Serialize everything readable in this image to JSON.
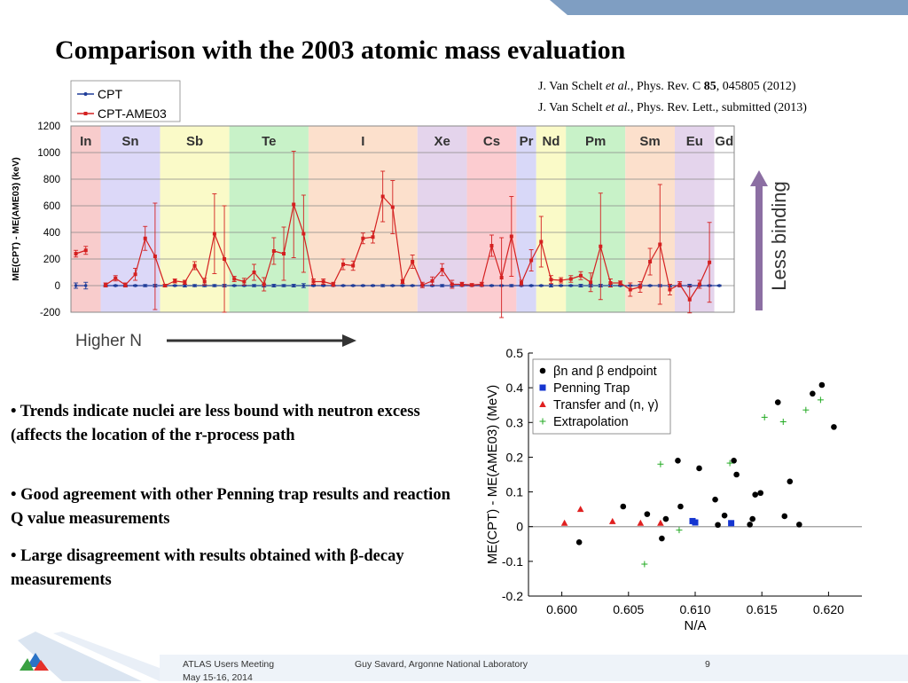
{
  "slide": {
    "title": "Comparison with the 2003 atomic mass evaluation",
    "ref1": {
      "authors": "J. Van Schelt ",
      "etal": "et al.",
      "journal": ", Phys. Rev. C ",
      "volume": "85",
      "rest": ", 045805 (2012)"
    },
    "ref2": {
      "authors": "J. Van Schelt ",
      "etal": "et al.",
      "rest": ", Phys. Rev. Lett., submitted (2013)"
    },
    "arrow_label": "Higher N",
    "less_binding": "Less binding",
    "bullets": [
      "• Trends indicate nuclei are less bound with neutron excess (affects the location of the r-process path",
      "• Good agreement with other Penning trap results and reaction Q value measurements",
      "• Large disagreement with results obtained with β-decay measurements"
    ],
    "footer": {
      "meeting": "ATLAS Users Meeting",
      "date": "May 15-16, 2014",
      "author": "Guy Savard, Argonne National Laboratory",
      "page": "9"
    },
    "colors": {
      "band_top": "#7f9ec2",
      "arrow_purple": "#8c6fa3",
      "cpt_blue": "#1f3d99",
      "ame_red": "#d42020"
    }
  },
  "chart_data": [
    {
      "type": "line",
      "title": "",
      "xlabel": "",
      "ylabel": "ME(CPT) - ME(AME03) (keV)",
      "ylim": [
        -200,
        1200
      ],
      "yticks": [
        -200,
        0,
        200,
        400,
        600,
        800,
        1000,
        1200
      ],
      "grid": true,
      "legend_position": "top-left",
      "legend": [
        "CPT",
        "CPT-AME03"
      ],
      "elements": [
        {
          "label": "In",
          "color": "#f8cccc",
          "start": 0,
          "end": 3
        },
        {
          "label": "Sn",
          "color": "#dcd8f8",
          "start": 3,
          "end": 9
        },
        {
          "label": "Sb",
          "color": "#fafac8",
          "start": 9,
          "end": 16
        },
        {
          "label": "Te",
          "color": "#c8f2c8",
          "start": 16,
          "end": 24
        },
        {
          "label": "I",
          "color": "#fce0cc",
          "start": 24,
          "end": 35
        },
        {
          "label": "Xe",
          "color": "#e4d4ec",
          "start": 35,
          "end": 40
        },
        {
          "label": "Cs",
          "color": "#fcccd0",
          "start": 40,
          "end": 45
        },
        {
          "label": "Pr",
          "color": "#d8d8f8",
          "start": 45,
          "end": 47
        },
        {
          "label": "Nd",
          "color": "#fafac8",
          "start": 47,
          "end": 50
        },
        {
          "label": "Pm",
          "color": "#c8f2c8",
          "start": 50,
          "end": 56
        },
        {
          "label": "Sm",
          "color": "#fce0cc",
          "start": 56,
          "end": 61
        },
        {
          "label": "Eu",
          "color": "#e4d4ec",
          "start": 61,
          "end": 65
        },
        {
          "label": "Gd",
          "color": "#ffffff",
          "start": 65,
          "end": 67
        }
      ],
      "series": [
        {
          "name": "CPT",
          "values": [
            0,
            0,
            null,
            0,
            0,
            0,
            0,
            0,
            0,
            0,
            0,
            0,
            0,
            0,
            0,
            0,
            0,
            0,
            0,
            0,
            0,
            0,
            0,
            0,
            0,
            0,
            0,
            0,
            0,
            0,
            0,
            0,
            0,
            0,
            0,
            0,
            0,
            0,
            0,
            0,
            0,
            0,
            0,
            0,
            0,
            0,
            0,
            0,
            0,
            0,
            0,
            0,
            0,
            0,
            0,
            0,
            0,
            0,
            0,
            0,
            0,
            0,
            0,
            0,
            0,
            0,
            null
          ],
          "errors": [
            20,
            25,
            0,
            5,
            5,
            5,
            5,
            8,
            10,
            10,
            5,
            10,
            8,
            8,
            8,
            10,
            5,
            5,
            8,
            10,
            10,
            8,
            10,
            15,
            5,
            5,
            5,
            5,
            5,
            5,
            5,
            8,
            5,
            5,
            5,
            5,
            5,
            8,
            10,
            5,
            5,
            5,
            5,
            5,
            8,
            5,
            5,
            5,
            10,
            5,
            5,
            10,
            10,
            10,
            10,
            5,
            5,
            10,
            5,
            8,
            10,
            5,
            10,
            5,
            5,
            5,
            0
          ]
        },
        {
          "name": "CPT-AME03",
          "values": [
            240,
            265,
            null,
            5,
            55,
            5,
            85,
            355,
            220,
            0,
            35,
            25,
            150,
            30,
            390,
            200,
            50,
            30,
            100,
            10,
            260,
            240,
            610,
            390,
            30,
            30,
            10,
            160,
            150,
            355,
            365,
            670,
            590,
            30,
            180,
            5,
            35,
            120,
            10,
            10,
            5,
            10,
            300,
            60,
            370,
            20,
            190,
            330,
            45,
            40,
            50,
            75,
            25,
            295,
            20,
            20,
            -30,
            -10,
            180,
            310,
            -30,
            10,
            -105,
            10,
            175,
            null,
            null
          ],
          "errors": [
            25,
            30,
            0,
            15,
            20,
            15,
            45,
            90,
            400,
            10,
            15,
            15,
            30,
            25,
            300,
            400,
            20,
            25,
            60,
            50,
            100,
            200,
            400,
            290,
            20,
            20,
            15,
            40,
            35,
            40,
            45,
            190,
            200,
            15,
            50,
            20,
            30,
            45,
            30,
            15,
            10,
            15,
            80,
            300,
            300,
            20,
            80,
            190,
            30,
            20,
            25,
            30,
            70,
            400,
            30,
            15,
            50,
            40,
            100,
            450,
            40,
            20,
            100,
            30,
            300,
            0,
            0
          ]
        }
      ]
    },
    {
      "type": "scatter",
      "title": "",
      "xlabel": "N/A",
      "ylabel": "ME(CPT) - ME(AME03) (MeV)",
      "xlim": [
        0.5975,
        0.6225
      ],
      "ylim": [
        -0.2,
        0.5
      ],
      "xticks": [
        0.6,
        0.605,
        0.61,
        0.615,
        0.62
      ],
      "yticks": [
        -0.2,
        -0.1,
        0,
        0.1,
        0.2,
        0.3,
        0.4,
        0.5
      ],
      "xtick_labels": [
        "0.600",
        "0.605",
        "0.610",
        "0.615",
        "0.620"
      ],
      "ytick_labels": [
        "-0.2",
        "-0.1",
        "0",
        "0.1",
        "0.2",
        "0.3",
        "0.4",
        "0.5"
      ],
      "legend_position": "top-left",
      "series": [
        {
          "name": "βn and β endpoint",
          "marker": "circle",
          "color": "#000000",
          "points": [
            [
              0.6013,
              -0.045
            ],
            [
              0.6046,
              0.058
            ],
            [
              0.6064,
              0.036
            ],
            [
              0.6075,
              -0.034
            ],
            [
              0.6078,
              0.022
            ],
            [
              0.6087,
              0.19
            ],
            [
              0.6089,
              0.058
            ],
            [
              0.6103,
              0.168
            ],
            [
              0.6115,
              0.078
            ],
            [
              0.6117,
              0.005
            ],
            [
              0.6122,
              0.032
            ],
            [
              0.6129,
              0.19
            ],
            [
              0.6131,
              0.15
            ],
            [
              0.6141,
              0.006
            ],
            [
              0.6143,
              0.022
            ],
            [
              0.6145,
              0.092
            ],
            [
              0.6149,
              0.097
            ],
            [
              0.6162,
              0.358
            ],
            [
              0.6167,
              0.03
            ],
            [
              0.6171,
              0.13
            ],
            [
              0.6178,
              0.006
            ],
            [
              0.6188,
              0.383
            ],
            [
              0.6195,
              0.408
            ],
            [
              0.6204,
              0.287
            ]
          ]
        },
        {
          "name": "Penning Trap",
          "marker": "square",
          "color": "#1535d0",
          "points": [
            [
              0.6098,
              0.016
            ],
            [
              0.61,
              0.012
            ],
            [
              0.6127,
              0.01
            ]
          ]
        },
        {
          "name": "Transfer and (n, γ)",
          "marker": "triangle",
          "color": "#e02020",
          "points": [
            [
              0.6002,
              0.01
            ],
            [
              0.6014,
              0.05
            ],
            [
              0.6038,
              0.015
            ],
            [
              0.6059,
              0.01
            ],
            [
              0.6074,
              0.01
            ]
          ]
        },
        {
          "name": "Extrapolation",
          "marker": "plus",
          "color": "#22aa22",
          "points": [
            [
              0.6062,
              -0.108
            ],
            [
              0.6074,
              0.18
            ],
            [
              0.6088,
              -0.01
            ],
            [
              0.6126,
              0.183
            ],
            [
              0.6152,
              0.315
            ],
            [
              0.6166,
              0.302
            ],
            [
              0.6183,
              0.336
            ],
            [
              0.6194,
              0.365
            ]
          ]
        }
      ]
    }
  ]
}
